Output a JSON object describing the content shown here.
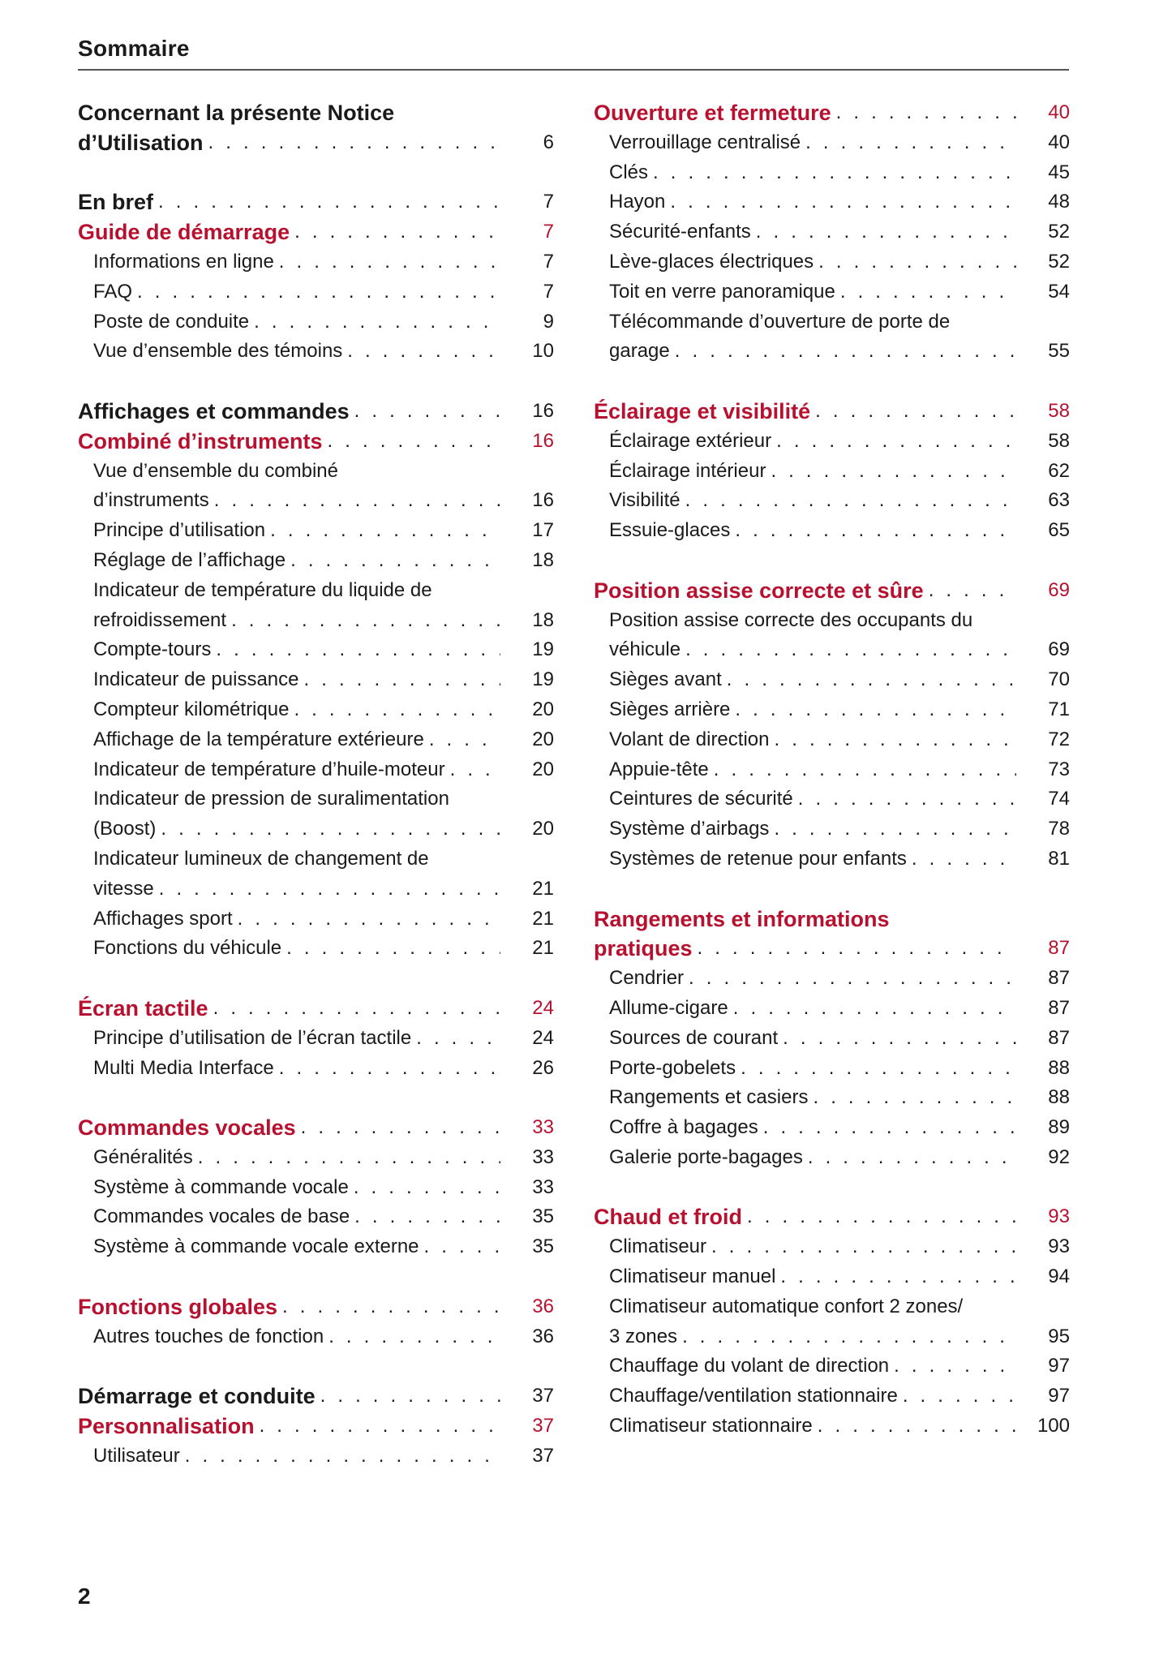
{
  "header": {
    "title": "Sommaire"
  },
  "footer": {
    "page_number": "2"
  },
  "colors": {
    "accent": "#b8102f",
    "text": "#1a1a1a"
  },
  "left_column": [
    {
      "type": "section",
      "title": "Concernant la présente Notice",
      "title2": "d’Utilisation",
      "page": "6"
    },
    {
      "type": "gap"
    },
    {
      "type": "section",
      "title": "En bref",
      "page": "7"
    },
    {
      "type": "chapter",
      "title": "Guide de démarrage",
      "page": "7"
    },
    {
      "type": "item",
      "title": "Informations en ligne",
      "page": "7"
    },
    {
      "type": "item",
      "title": "FAQ",
      "page": "7"
    },
    {
      "type": "item",
      "title": "Poste de conduite",
      "page": "9"
    },
    {
      "type": "item",
      "title": "Vue d’ensemble des témoins",
      "page": "10"
    },
    {
      "type": "gap"
    },
    {
      "type": "section",
      "title": "Affichages et commandes",
      "page": "16"
    },
    {
      "type": "chapter",
      "title": "Combiné d’instruments",
      "page": "16"
    },
    {
      "type": "item",
      "title": "Vue d’ensemble du combiné",
      "title2": "d’instruments",
      "page": "16"
    },
    {
      "type": "item",
      "title": "Principe d’utilisation",
      "page": "17"
    },
    {
      "type": "item",
      "title": "Réglage de l’affichage",
      "page": "18"
    },
    {
      "type": "item",
      "title": "Indicateur de température du liquide de",
      "title2": "refroidissement",
      "page": "18"
    },
    {
      "type": "item",
      "title": "Compte-tours",
      "page": "19"
    },
    {
      "type": "item",
      "title": "Indicateur de puissance",
      "page": "19"
    },
    {
      "type": "item",
      "title": "Compteur kilométrique",
      "page": "20"
    },
    {
      "type": "item",
      "title": "Affichage de la température extérieure",
      "page": "20"
    },
    {
      "type": "item",
      "title": "Indicateur de température d’huile-moteur",
      "page": "20"
    },
    {
      "type": "item",
      "title": "Indicateur de pression de suralimentation",
      "title2": "(Boost)",
      "page": "20"
    },
    {
      "type": "item",
      "title": "Indicateur lumineux de changement de",
      "title2": "vitesse",
      "page": "21"
    },
    {
      "type": "item",
      "title": "Affichages sport",
      "page": "21"
    },
    {
      "type": "item",
      "title": "Fonctions du véhicule",
      "page": "21"
    },
    {
      "type": "gap"
    },
    {
      "type": "chapter",
      "title": "Écran tactile",
      "page": "24"
    },
    {
      "type": "item",
      "title": "Principe d’utilisation de l’écran tactile",
      "page": "24"
    },
    {
      "type": "item",
      "title": "Multi Media Interface",
      "page": "26"
    },
    {
      "type": "gap"
    },
    {
      "type": "chapter",
      "title": "Commandes vocales",
      "page": "33"
    },
    {
      "type": "item",
      "title": "Généralités",
      "page": "33"
    },
    {
      "type": "item",
      "title": "Système à commande vocale",
      "page": "33"
    },
    {
      "type": "item",
      "title": "Commandes vocales de base",
      "page": "35"
    },
    {
      "type": "item",
      "title": "Système à commande vocale externe",
      "page": "35"
    },
    {
      "type": "gap"
    },
    {
      "type": "chapter",
      "title": "Fonctions globales",
      "page": "36"
    },
    {
      "type": "item",
      "title": "Autres touches de fonction",
      "page": "36"
    },
    {
      "type": "gap"
    },
    {
      "type": "section",
      "title": "Démarrage et conduite",
      "page": "37"
    },
    {
      "type": "chapter",
      "title": "Personnalisation",
      "page": "37"
    },
    {
      "type": "item",
      "title": "Utilisateur",
      "page": "37"
    }
  ],
  "right_column": [
    {
      "type": "chapter",
      "title": "Ouverture et fermeture",
      "page": "40"
    },
    {
      "type": "item",
      "title": "Verrouillage centralisé",
      "page": "40"
    },
    {
      "type": "item",
      "title": "Clés",
      "page": "45"
    },
    {
      "type": "item",
      "title": "Hayon",
      "page": "48"
    },
    {
      "type": "item",
      "title": "Sécurité-enfants",
      "page": "52"
    },
    {
      "type": "item",
      "title": "Lève-glaces électriques",
      "page": "52"
    },
    {
      "type": "item",
      "title": "Toit en verre panoramique",
      "page": "54"
    },
    {
      "type": "item",
      "title": "Télécommande d’ouverture de porte de",
      "title2": "garage",
      "page": "55"
    },
    {
      "type": "gap"
    },
    {
      "type": "chapter",
      "title": "Éclairage et visibilité",
      "page": "58"
    },
    {
      "type": "item",
      "title": "Éclairage extérieur",
      "page": "58"
    },
    {
      "type": "item",
      "title": "Éclairage intérieur",
      "page": "62"
    },
    {
      "type": "item",
      "title": "Visibilité",
      "page": "63"
    },
    {
      "type": "item",
      "title": "Essuie-glaces",
      "page": "65"
    },
    {
      "type": "gap"
    },
    {
      "type": "chapter",
      "title": "Position assise correcte et sûre",
      "page": "69"
    },
    {
      "type": "item",
      "title": "Position assise correcte des occupants du",
      "title2": "véhicule",
      "page": "69"
    },
    {
      "type": "item",
      "title": "Sièges avant",
      "page": "70"
    },
    {
      "type": "item",
      "title": "Sièges arrière",
      "page": "71"
    },
    {
      "type": "item",
      "title": "Volant de direction",
      "page": "72"
    },
    {
      "type": "item",
      "title": "Appuie-tête",
      "page": "73"
    },
    {
      "type": "item",
      "title": "Ceintures de sécurité",
      "page": "74"
    },
    {
      "type": "item",
      "title": "Système d’airbags",
      "page": "78"
    },
    {
      "type": "item",
      "title": "Systèmes de retenue pour enfants",
      "page": "81"
    },
    {
      "type": "gap"
    },
    {
      "type": "chapter",
      "title": "Rangements et informations",
      "title2": "pratiques",
      "page": "87"
    },
    {
      "type": "item",
      "title": "Cendrier",
      "page": "87"
    },
    {
      "type": "item",
      "title": "Allume-cigare",
      "page": "87"
    },
    {
      "type": "item",
      "title": "Sources de courant",
      "page": "87"
    },
    {
      "type": "item",
      "title": "Porte-gobelets",
      "page": "88"
    },
    {
      "type": "item",
      "title": "Rangements et casiers",
      "page": "88"
    },
    {
      "type": "item",
      "title": "Coffre à bagages",
      "page": "89"
    },
    {
      "type": "item",
      "title": "Galerie porte-bagages",
      "page": "92"
    },
    {
      "type": "gap"
    },
    {
      "type": "chapter",
      "title": "Chaud et froid",
      "page": "93"
    },
    {
      "type": "item",
      "title": "Climatiseur",
      "page": "93"
    },
    {
      "type": "item",
      "title": "Climatiseur manuel",
      "page": "94"
    },
    {
      "type": "item",
      "title": "Climatiseur automatique confort 2 zones/",
      "title2": "3 zones",
      "page": "95"
    },
    {
      "type": "item",
      "title": "Chauffage du volant de direction",
      "page": "97"
    },
    {
      "type": "item",
      "title": "Chauffage/ventilation stationnaire",
      "page": "97"
    },
    {
      "type": "item",
      "title": "Climatiseur stationnaire",
      "page": "100"
    }
  ]
}
